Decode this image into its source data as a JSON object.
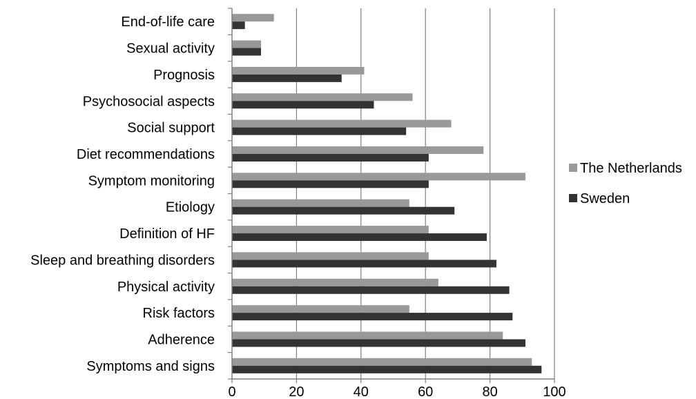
{
  "chart_data": {
    "type": "bar",
    "orientation": "horizontal",
    "categories": [
      "End-of-life care",
      "Sexual activity",
      "Prognosis",
      "Psychosocial aspects",
      "Social support",
      "Diet recommendations",
      "Symptom monitoring",
      "Etiology",
      "Definition of HF",
      "Sleep and breathing disorders",
      "Physical activity",
      "Risk factors",
      "Adherence",
      "Symptoms and signs"
    ],
    "series": [
      {
        "name": "The Netherlands",
        "color": "#999999",
        "values": [
          13,
          9,
          41,
          56,
          68,
          78,
          91,
          55,
          61,
          61,
          64,
          55,
          84,
          93
        ]
      },
      {
        "name": "Sweden",
        "color": "#333333",
        "values": [
          4,
          9,
          34,
          44,
          54,
          61,
          61,
          69,
          79,
          82,
          86,
          87,
          91,
          96
        ]
      }
    ],
    "xlim": [
      0,
      100
    ],
    "xticks": [
      "0",
      "20",
      "40",
      "60",
      "80",
      "100"
    ],
    "grid": "vertical",
    "legend_position": "right"
  }
}
